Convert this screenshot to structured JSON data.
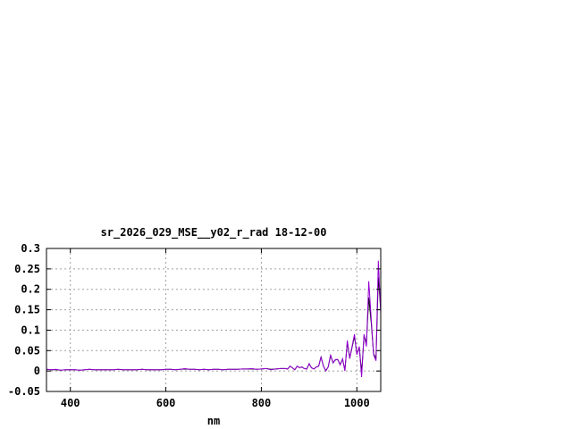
{
  "chart_data": {
    "type": "line",
    "title": "sr_2026_029_MSE__y02_r_rad 18-12-00",
    "xlabel": "nm",
    "ylabel": "",
    "xlim": [
      350,
      1050
    ],
    "ylim": [
      -0.05,
      0.3
    ],
    "xticks": [
      400,
      600,
      800,
      1000
    ],
    "yticks": [
      -0.05,
      0,
      0.05,
      0.1,
      0.15,
      0.2,
      0.25,
      0.3
    ],
    "ytick_labels": [
      "-0.05",
      "0",
      "0.05",
      "0.1",
      "0.15",
      "0.2",
      "0.25",
      "0.3"
    ],
    "grid": true,
    "x": [
      350,
      360,
      370,
      380,
      390,
      400,
      410,
      420,
      430,
      440,
      450,
      460,
      470,
      480,
      490,
      500,
      510,
      520,
      530,
      540,
      550,
      560,
      570,
      580,
      590,
      600,
      610,
      620,
      630,
      640,
      650,
      660,
      670,
      680,
      690,
      700,
      710,
      720,
      730,
      740,
      750,
      760,
      770,
      780,
      790,
      800,
      810,
      820,
      830,
      840,
      850,
      855,
      860,
      865,
      870,
      875,
      880,
      885,
      890,
      895,
      900,
      905,
      910,
      915,
      920,
      925,
      930,
      935,
      940,
      945,
      950,
      955,
      960,
      965,
      970,
      975,
      980,
      985,
      990,
      995,
      1000,
      1005,
      1010,
      1015,
      1020,
      1025,
      1030,
      1035,
      1040,
      1045,
      1050
    ],
    "series": [
      {
        "color": "#000000",
        "values": [
          0.004,
          0.003,
          0.003,
          0.002,
          0.003,
          0.003,
          0.003,
          0.002,
          0.003,
          0.004,
          0.003,
          0.003,
          0.003,
          0.003,
          0.003,
          0.004,
          0.003,
          0.003,
          0.003,
          0.003,
          0.004,
          0.003,
          0.003,
          0.003,
          0.003,
          0.004,
          0.004,
          0.003,
          0.004,
          0.005,
          0.004,
          0.004,
          0.003,
          0.004,
          0.003,
          0.004,
          0.004,
          0.003,
          0.004,
          0.004,
          0.004,
          0.005,
          0.005,
          0.005,
          0.004,
          0.005,
          0.006,
          0.004,
          0.005,
          0.006,
          0.006,
          0.005,
          0.012,
          0.008,
          0.003,
          0.012,
          0.008,
          0.01,
          0.006,
          0.005,
          0.018,
          0.008,
          0.005,
          0.01,
          0.012,
          0.034,
          0.012,
          0.001,
          0.01,
          0.038,
          0.02,
          0.027,
          0.028,
          0.016,
          0.029,
          0.002,
          0.07,
          0.032,
          0.058,
          0.085,
          0.042,
          0.058,
          -0.005,
          0.085,
          0.07,
          0.18,
          0.12,
          0.042,
          0.03,
          0.23,
          0.15
        ]
      },
      {
        "color": "#9400d3",
        "values": [
          0.004,
          0.003,
          0.004,
          0.002,
          0.003,
          0.003,
          0.003,
          0.002,
          0.003,
          0.004,
          0.003,
          0.003,
          0.003,
          0.003,
          0.003,
          0.004,
          0.003,
          0.003,
          0.003,
          0.003,
          0.004,
          0.003,
          0.003,
          0.003,
          0.003,
          0.004,
          0.004,
          0.003,
          0.004,
          0.006,
          0.004,
          0.004,
          0.003,
          0.004,
          0.003,
          0.004,
          0.004,
          0.003,
          0.004,
          0.004,
          0.004,
          0.005,
          0.005,
          0.006,
          0.004,
          0.005,
          0.006,
          0.003,
          0.005,
          0.006,
          0.006,
          0.005,
          0.012,
          0.008,
          0.003,
          0.012,
          0.008,
          0.01,
          0.006,
          0.005,
          0.018,
          0.008,
          0.005,
          0.01,
          0.012,
          0.035,
          0.012,
          0.0,
          0.01,
          0.04,
          0.02,
          0.028,
          0.028,
          0.015,
          0.03,
          0.0,
          0.075,
          0.03,
          0.06,
          0.09,
          0.04,
          0.06,
          -0.015,
          0.09,
          0.06,
          0.22,
          0.13,
          0.04,
          0.025,
          0.27,
          0.14
        ]
      }
    ]
  }
}
